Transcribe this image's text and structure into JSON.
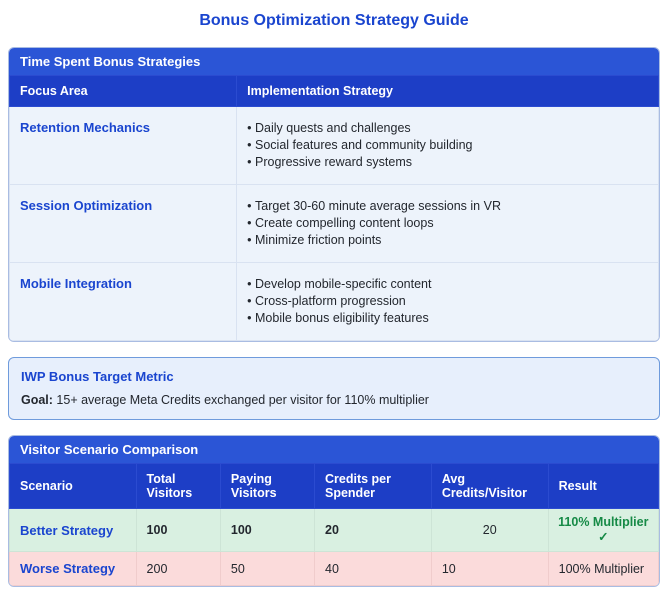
{
  "page": {
    "title": "Bonus Optimization Strategy Guide"
  },
  "colors": {
    "primary_blue": "#1a45cf",
    "section_header_blue": "#2b55d6",
    "table_header_blue": "#1d3ec6",
    "success_green": "#168a46",
    "better_row_bg": "#d9f0e1",
    "worse_row_bg": "#fbdbdb",
    "callout_bg": "#e7effc"
  },
  "strategies_section": {
    "title": "Time Spent Bonus Strategies",
    "columns": [
      "Focus Area",
      "Implementation Strategy"
    ],
    "rows": [
      {
        "focus": "Retention Mechanics",
        "items": [
          "Daily quests and challenges",
          "Social features and community building",
          "Progressive reward systems"
        ]
      },
      {
        "focus": "Session Optimization",
        "items": [
          "Target 30-60 minute average sessions in VR",
          "Create compelling content loops",
          "Minimize friction points"
        ]
      },
      {
        "focus": "Mobile Integration",
        "items": [
          "Develop mobile-specific content",
          "Cross-platform progression",
          "Mobile bonus eligibility features"
        ]
      }
    ]
  },
  "callout": {
    "title": "IWP Bonus Target Metric",
    "goal_label": "Goal:",
    "goal_text": " 15+ average Meta Credits exchanged per visitor for 110% multiplier"
  },
  "comparison_section": {
    "title": "Visitor Scenario Comparison",
    "columns": [
      "Scenario",
      "Total Visitors",
      "Paying Visitors",
      "Credits per Spender",
      "Avg Credits/Visitor",
      "Result"
    ],
    "rows": [
      {
        "scenario": "Better Strategy",
        "total_visitors": "100",
        "paying_visitors": "100",
        "credits_per_spender": "20",
        "avg_credits": "20",
        "result": "110% Multiplier",
        "result_check": "✓"
      },
      {
        "scenario": "Worse Strategy",
        "total_visitors": "200",
        "paying_visitors": "50",
        "credits_per_spender": "40",
        "avg_credits": "10",
        "result": "100% Multiplier",
        "result_check": ""
      }
    ]
  }
}
